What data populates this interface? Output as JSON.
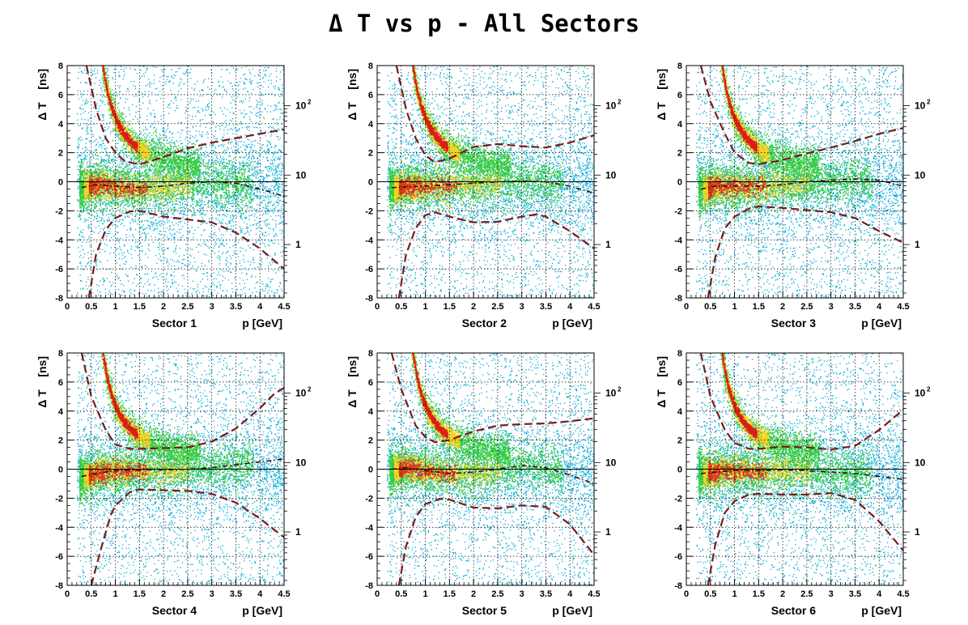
{
  "title": "Δ T vs p - All Sectors",
  "colors": {
    "scatter_low": "#00a9d6",
    "mid": "#33cc33",
    "high": "#ffd21f",
    "peak": "#d91e18",
    "curve": "#000000"
  },
  "chart_data": [
    {
      "type": "heatmap",
      "sector_label": "Sector 1",
      "xlabel": "p [GeV]",
      "ylabel": "Δ T    [ns]",
      "xlim": [
        0,
        4.5
      ],
      "ylim": [
        -8,
        8
      ],
      "xticks": [
        "0",
        "0.5",
        "1",
        "1.5",
        "2",
        "2.5",
        "3",
        "3.5",
        "4",
        "4.5"
      ],
      "yticks": [
        "-8",
        "-6",
        "-4",
        "-2",
        "0",
        "2",
        "4",
        "6",
        "8"
      ],
      "z_scale": "log",
      "z_ticks": [
        {
          "value": 1,
          "label": "1",
          "sup": ""
        },
        {
          "value": 10,
          "label": "10",
          "sup": ""
        },
        {
          "value": 100,
          "label": "10",
          "sup": "2"
        }
      ],
      "grid": true,
      "upper_curve": [
        [
          0.4,
          8
        ],
        [
          0.6,
          5.0
        ],
        [
          0.8,
          3.0
        ],
        [
          1.0,
          2.0
        ],
        [
          1.2,
          1.4
        ],
        [
          1.5,
          1.2
        ],
        [
          2.0,
          1.7
        ],
        [
          2.5,
          2.3
        ],
        [
          3.0,
          2.7
        ],
        [
          3.5,
          3.0
        ],
        [
          4.0,
          3.3
        ],
        [
          4.5,
          3.6
        ]
      ],
      "mean_curve": [
        [
          0.3,
          -0.4
        ],
        [
          0.6,
          -0.2
        ],
        [
          1.0,
          -0.3
        ],
        [
          1.5,
          -0.4
        ],
        [
          2.0,
          -0.3
        ],
        [
          2.5,
          -0.1
        ],
        [
          3.0,
          0.0
        ],
        [
          3.5,
          -0.1
        ],
        [
          4.0,
          -0.5
        ],
        [
          4.5,
          -1.0
        ]
      ],
      "lower_curve": [
        [
          0.45,
          -8
        ],
        [
          0.6,
          -5.0
        ],
        [
          0.8,
          -3.3
        ],
        [
          1.0,
          -2.5
        ],
        [
          1.3,
          -2.05
        ],
        [
          1.5,
          -2.0
        ],
        [
          2.0,
          -2.4
        ],
        [
          2.5,
          -2.6
        ],
        [
          3.0,
          -2.8
        ],
        [
          3.5,
          -3.5
        ],
        [
          4.0,
          -4.6
        ],
        [
          4.5,
          -6.0
        ]
      ]
    },
    {
      "type": "heatmap",
      "sector_label": "Sector 2",
      "xlabel": "p [GeV]",
      "ylabel": "Δ T    [ns]",
      "xlim": [
        0,
        4.5
      ],
      "ylim": [
        -8,
        8
      ],
      "xticks": [
        "0",
        "0.5",
        "1",
        "1.5",
        "2",
        "2.5",
        "3",
        "3.5",
        "4",
        "4.5"
      ],
      "yticks": [
        "-8",
        "-6",
        "-4",
        "-2",
        "0",
        "2",
        "4",
        "6",
        "8"
      ],
      "z_scale": "log",
      "z_ticks": [
        {
          "value": 1,
          "label": "1",
          "sup": ""
        },
        {
          "value": 10,
          "label": "10",
          "sup": ""
        },
        {
          "value": 100,
          "label": "10",
          "sup": "2"
        }
      ],
      "grid": true,
      "upper_curve": [
        [
          0.4,
          8
        ],
        [
          0.6,
          5.0
        ],
        [
          0.8,
          3.0
        ],
        [
          1.0,
          1.8
        ],
        [
          1.2,
          1.35
        ],
        [
          1.5,
          1.6
        ],
        [
          2.0,
          2.4
        ],
        [
          2.5,
          2.6
        ],
        [
          3.0,
          2.45
        ],
        [
          3.5,
          2.35
        ],
        [
          4.0,
          2.7
        ],
        [
          4.5,
          3.2
        ]
      ],
      "mean_curve": [
        [
          0.3,
          -0.4
        ],
        [
          0.6,
          -0.35
        ],
        [
          1.0,
          -0.3
        ],
        [
          1.5,
          -0.2
        ],
        [
          2.0,
          -0.1
        ],
        [
          2.5,
          0.0
        ],
        [
          3.0,
          0.05
        ],
        [
          3.5,
          0.0
        ],
        [
          4.0,
          -0.3
        ],
        [
          4.5,
          -0.8
        ]
      ],
      "lower_curve": [
        [
          0.45,
          -8
        ],
        [
          0.6,
          -5.0
        ],
        [
          0.8,
          -3.2
        ],
        [
          1.0,
          -2.3
        ],
        [
          1.2,
          -2.1
        ],
        [
          1.5,
          -2.4
        ],
        [
          2.0,
          -2.8
        ],
        [
          2.5,
          -2.75
        ],
        [
          3.0,
          -2.4
        ],
        [
          3.3,
          -2.25
        ],
        [
          3.5,
          -2.4
        ],
        [
          4.0,
          -3.4
        ],
        [
          4.5,
          -4.6
        ]
      ]
    },
    {
      "type": "heatmap",
      "sector_label": "Sector 3",
      "xlabel": "p [GeV]",
      "ylabel": "Δ T    [ns]",
      "xlim": [
        0,
        4.5
      ],
      "ylim": [
        -8,
        8
      ],
      "xticks": [
        "0",
        "0.5",
        "1",
        "1.5",
        "2",
        "2.5",
        "3",
        "3.5",
        "4",
        "4.5"
      ],
      "yticks": [
        "-8",
        "-6",
        "-4",
        "-2",
        "0",
        "2",
        "4",
        "6",
        "8"
      ],
      "z_scale": "log",
      "z_ticks": [
        {
          "value": 1,
          "label": "1",
          "sup": ""
        },
        {
          "value": 10,
          "label": "10",
          "sup": ""
        },
        {
          "value": 100,
          "label": "10",
          "sup": "2"
        }
      ],
      "grid": true,
      "upper_curve": [
        [
          0.3,
          8
        ],
        [
          0.5,
          5.5
        ],
        [
          0.8,
          3.3
        ],
        [
          1.0,
          2.0
        ],
        [
          1.3,
          1.3
        ],
        [
          1.5,
          1.2
        ],
        [
          2.0,
          1.5
        ],
        [
          2.5,
          1.95
        ],
        [
          3.0,
          2.35
        ],
        [
          3.5,
          2.8
        ],
        [
          4.0,
          3.3
        ],
        [
          4.5,
          3.7
        ]
      ],
      "mean_curve": [
        [
          0.3,
          -0.5
        ],
        [
          0.6,
          -0.3
        ],
        [
          1.0,
          -0.3
        ],
        [
          1.5,
          -0.3
        ],
        [
          2.0,
          -0.2
        ],
        [
          2.5,
          0.0
        ],
        [
          3.0,
          0.1
        ],
        [
          3.5,
          0.2
        ],
        [
          4.0,
          0.1
        ],
        [
          4.5,
          -0.3
        ]
      ],
      "lower_curve": [
        [
          0.45,
          -8
        ],
        [
          0.6,
          -5.2
        ],
        [
          0.8,
          -3.2
        ],
        [
          1.0,
          -2.4
        ],
        [
          1.3,
          -1.85
        ],
        [
          1.5,
          -1.7
        ],
        [
          2.0,
          -1.8
        ],
        [
          2.5,
          -1.95
        ],
        [
          3.0,
          -2.1
        ],
        [
          3.5,
          -2.5
        ],
        [
          4.0,
          -3.4
        ],
        [
          4.5,
          -4.2
        ]
      ]
    },
    {
      "type": "heatmap",
      "sector_label": "Sector 4",
      "xlabel": "p [GeV]",
      "ylabel": "Δ T    [ns]",
      "xlim": [
        0,
        4.5
      ],
      "ylim": [
        -8,
        8
      ],
      "xticks": [
        "0",
        "0.5",
        "1",
        "1.5",
        "2",
        "2.5",
        "3",
        "3.5",
        "4",
        "4.5"
      ],
      "yticks": [
        "-8",
        "-6",
        "-4",
        "-2",
        "0",
        "2",
        "4",
        "6",
        "8"
      ],
      "z_scale": "log",
      "z_ticks": [
        {
          "value": 1,
          "label": "1",
          "sup": ""
        },
        {
          "value": 10,
          "label": "10",
          "sup": ""
        },
        {
          "value": 100,
          "label": "10",
          "sup": "2"
        }
      ],
      "grid": true,
      "upper_curve": [
        [
          0.3,
          8
        ],
        [
          0.5,
          5.0
        ],
        [
          0.8,
          2.7
        ],
        [
          1.0,
          1.7
        ],
        [
          1.3,
          1.4
        ],
        [
          1.5,
          1.4
        ],
        [
          2.0,
          1.45
        ],
        [
          2.5,
          1.5
        ],
        [
          3.0,
          1.9
        ],
        [
          3.5,
          2.8
        ],
        [
          4.0,
          4.2
        ],
        [
          4.3,
          5.2
        ],
        [
          4.5,
          5.6
        ]
      ],
      "mean_curve": [
        [
          0.3,
          -0.5
        ],
        [
          0.6,
          -0.3
        ],
        [
          1.0,
          -0.1
        ],
        [
          1.5,
          -0.05
        ],
        [
          2.0,
          -0.05
        ],
        [
          2.5,
          0.0
        ],
        [
          3.0,
          0.1
        ],
        [
          3.5,
          0.3
        ],
        [
          4.0,
          0.5
        ],
        [
          4.5,
          0.7
        ]
      ],
      "lower_curve": [
        [
          0.5,
          -8
        ],
        [
          0.7,
          -5.5
        ],
        [
          0.9,
          -3.2
        ],
        [
          1.0,
          -2.5
        ],
        [
          1.3,
          -1.6
        ],
        [
          1.5,
          -1.4
        ],
        [
          2.0,
          -1.45
        ],
        [
          2.5,
          -1.5
        ],
        [
          3.0,
          -1.7
        ],
        [
          3.5,
          -2.3
        ],
        [
          4.0,
          -3.4
        ],
        [
          4.5,
          -4.7
        ]
      ]
    },
    {
      "type": "heatmap",
      "sector_label": "Sector 5",
      "xlabel": "p [GeV]",
      "ylabel": "Δ T    [ns]",
      "xlim": [
        0,
        4.5
      ],
      "ylim": [
        -8,
        8
      ],
      "xticks": [
        "0",
        "0.5",
        "1",
        "1.5",
        "2",
        "2.5",
        "3",
        "3.5",
        "4",
        "4.5"
      ],
      "yticks": [
        "-8",
        "-6",
        "-4",
        "-2",
        "0",
        "2",
        "4",
        "6",
        "8"
      ],
      "z_scale": "log",
      "z_ticks": [
        {
          "value": 1,
          "label": "1",
          "sup": ""
        },
        {
          "value": 10,
          "label": "10",
          "sup": ""
        },
        {
          "value": 100,
          "label": "10",
          "sup": "2"
        }
      ],
      "grid": true,
      "upper_curve": [
        [
          0.3,
          8
        ],
        [
          0.5,
          5.5
        ],
        [
          0.8,
          3.0
        ],
        [
          1.0,
          2.2
        ],
        [
          1.2,
          1.85
        ],
        [
          1.5,
          2.0
        ],
        [
          2.0,
          2.6
        ],
        [
          2.5,
          3.0
        ],
        [
          3.0,
          3.1
        ],
        [
          3.5,
          3.15
        ],
        [
          4.0,
          3.3
        ],
        [
          4.5,
          3.5
        ]
      ],
      "mean_curve": [
        [
          0.3,
          0.0
        ],
        [
          0.6,
          0.1
        ],
        [
          1.0,
          -0.1
        ],
        [
          1.5,
          -0.3
        ],
        [
          2.0,
          -0.2
        ],
        [
          2.5,
          0.0
        ],
        [
          3.0,
          0.25
        ],
        [
          3.5,
          0.1
        ],
        [
          4.0,
          -0.4
        ],
        [
          4.5,
          -1.0
        ]
      ],
      "lower_curve": [
        [
          0.45,
          -8
        ],
        [
          0.6,
          -5.3
        ],
        [
          0.8,
          -3.3
        ],
        [
          1.0,
          -2.4
        ],
        [
          1.3,
          -2.05
        ],
        [
          1.5,
          -2.1
        ],
        [
          2.0,
          -2.65
        ],
        [
          2.5,
          -2.7
        ],
        [
          3.0,
          -2.5
        ],
        [
          3.5,
          -2.6
        ],
        [
          4.0,
          -3.8
        ],
        [
          4.5,
          -5.9
        ]
      ]
    },
    {
      "type": "heatmap",
      "sector_label": "Sector 6",
      "xlabel": "p [GeV]",
      "ylabel": "Δ T    [ns]",
      "xlim": [
        0,
        4.5
      ],
      "ylim": [
        -8,
        8
      ],
      "xticks": [
        "0",
        "0.5",
        "1",
        "1.5",
        "2",
        "2.5",
        "3",
        "3.5",
        "4",
        "4.5"
      ],
      "yticks": [
        "-8",
        "-6",
        "-4",
        "-2",
        "0",
        "2",
        "4",
        "6",
        "8"
      ],
      "z_scale": "log",
      "z_ticks": [
        {
          "value": 1,
          "label": "1",
          "sup": ""
        },
        {
          "value": 10,
          "label": "10",
          "sup": ""
        },
        {
          "value": 100,
          "label": "10",
          "sup": "2"
        }
      ],
      "grid": true,
      "upper_curve": [
        [
          0.3,
          8
        ],
        [
          0.5,
          5.0
        ],
        [
          0.8,
          2.7
        ],
        [
          1.0,
          1.8
        ],
        [
          1.3,
          1.4
        ],
        [
          1.5,
          1.4
        ],
        [
          2.0,
          1.55
        ],
        [
          2.5,
          1.5
        ],
        [
          3.0,
          1.35
        ],
        [
          3.5,
          1.6
        ],
        [
          4.0,
          2.7
        ],
        [
          4.5,
          4.1
        ]
      ],
      "mean_curve": [
        [
          0.3,
          -0.3
        ],
        [
          0.6,
          -0.2
        ],
        [
          1.0,
          -0.1
        ],
        [
          1.5,
          -0.1
        ],
        [
          2.0,
          -0.05
        ],
        [
          2.5,
          -0.1
        ],
        [
          3.0,
          -0.2
        ],
        [
          3.5,
          -0.3
        ],
        [
          4.0,
          -0.5
        ],
        [
          4.5,
          -0.7
        ]
      ],
      "lower_curve": [
        [
          0.45,
          -8
        ],
        [
          0.6,
          -5.2
        ],
        [
          0.8,
          -3.0
        ],
        [
          1.0,
          -2.2
        ],
        [
          1.3,
          -1.75
        ],
        [
          1.5,
          -1.7
        ],
        [
          2.0,
          -1.75
        ],
        [
          2.5,
          -1.75
        ],
        [
          3.0,
          -1.65
        ],
        [
          3.5,
          -2.1
        ],
        [
          4.0,
          -3.6
        ],
        [
          4.5,
          -5.6
        ]
      ]
    }
  ]
}
